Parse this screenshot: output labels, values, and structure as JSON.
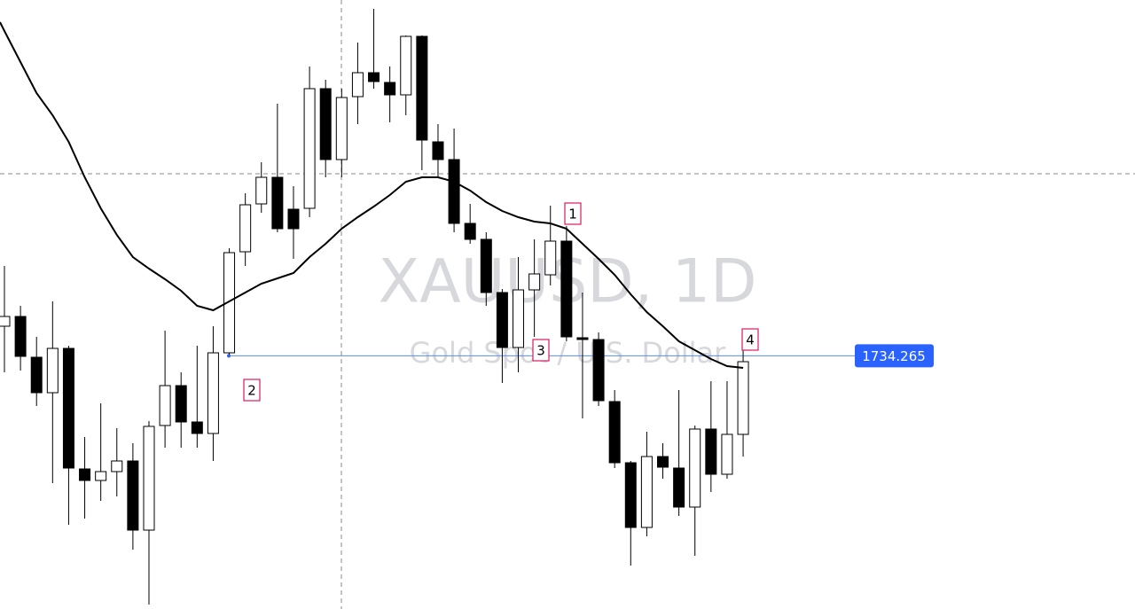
{
  "chart_data": {
    "type": "candlestick",
    "title": "XAUUSD, 1D",
    "subtitle": "Gold Spot / U.S. Dollar",
    "ylim": [
      1620,
      1894.8
    ],
    "categories": [
      null,
      null,
      null,
      null,
      null,
      null,
      null,
      null,
      null,
      null,
      null,
      null,
      null,
      null,
      null,
      null,
      null,
      null,
      null,
      null,
      null,
      null,
      null,
      null,
      null,
      null,
      null,
      null,
      null,
      null,
      null,
      null,
      null,
      null,
      null,
      null,
      null,
      null,
      null,
      null,
      null,
      null,
      null,
      null,
      null,
      null,
      null
    ],
    "open": [
      1747.6,
      1752.0,
      1733.6,
      1717.6,
      1737.6,
      1683.2,
      1678.0,
      1682.0,
      1686.8,
      1655.6,
      1702.8,
      1720.8,
      1704.4,
      1699.2,
      1735.6,
      1781.2,
      1802.8,
      1814.8,
      1800.4,
      1800.8,
      1854.8,
      1822.8,
      1851.2,
      1862.0,
      1857.6,
      1852.0,
      1878.4,
      1830.8,
      1822.8,
      1794.0,
      1786.8,
      1762.8,
      1738.0,
      1764.0,
      1770.8,
      1786.0,
      1742.4,
      1741.6,
      1713.6,
      1686.0,
      1656.8,
      1688.8,
      1683.6,
      1666.0,
      1701.2,
      1680.8,
      1698.8
    ],
    "high": [
      1774.8,
      1756.8,
      1742.8,
      1758.8,
      1738.8,
      1697.6,
      1712.8,
      1701.6,
      1694.8,
      1704.8,
      1745.6,
      1726.8,
      1738.8,
      1747.6,
      1782.8,
      1807.6,
      1821.6,
      1848.0,
      1810.8,
      1864.8,
      1858.8,
      1854.8,
      1875.6,
      1890.8,
      1864.8,
      1878.8,
      1878.8,
      1838.8,
      1836.8,
      1802.8,
      1790.0,
      1764.4,
      1778.8,
      1786.8,
      1802.0,
      1792.8,
      1762.8,
      1744.8,
      1718.8,
      1686.8,
      1700.0,
      1694.8,
      1718.8,
      1702.8,
      1722.8,
      1722.8,
      1736.8
    ],
    "low": [
      1726.8,
      1727.6,
      1711.6,
      1676.8,
      1658.0,
      1660.8,
      1668.8,
      1670.8,
      1646.8,
      1622.0,
      1692.8,
      1692.8,
      1692.8,
      1686.8,
      1734.8,
      1774.8,
      1798.8,
      1790.0,
      1778.0,
      1796.8,
      1814.8,
      1814.8,
      1838.8,
      1854.8,
      1839.6,
      1842.8,
      1818.0,
      1814.8,
      1790.0,
      1784.8,
      1756.8,
      1722.0,
      1726.8,
      1742.8,
      1766.0,
      1740.8,
      1706.0,
      1711.6,
      1683.6,
      1639.6,
      1652.8,
      1678.8,
      1662.0,
      1644.0,
      1672.8,
      1678.8,
      1688.8
    ],
    "close": [
      1752.0,
      1734.0,
      1717.6,
      1737.6,
      1683.6,
      1678.0,
      1682.0,
      1686.8,
      1655.6,
      1702.4,
      1720.8,
      1704.4,
      1699.2,
      1735.6,
      1780.8,
      1802.4,
      1814.8,
      1791.6,
      1791.6,
      1854.8,
      1822.8,
      1850.8,
      1862.0,
      1858.0,
      1852.0,
      1878.4,
      1831.6,
      1822.8,
      1794.0,
      1786.8,
      1762.8,
      1738.0,
      1764.0,
      1771.2,
      1786.0,
      1742.8,
      1741.6,
      1714.0,
      1686.0,
      1656.8,
      1688.8,
      1684.0,
      1666.0,
      1701.2,
      1680.8,
      1698.8,
      1731.6
    ],
    "moving_average": [
      1880.8,
      1866.8,
      1852.8,
      1842.8,
      1830.8,
      1814.8,
      1800.8,
      1788.8,
      1778.8,
      1773.6,
      1768.8,
      1763.6,
      1756.8,
      1754.8,
      1758.8,
      1762.8,
      1766.8,
      1769.2,
      1771.6,
      1778.8,
      1784.8,
      1791.6,
      1796.8,
      1801.6,
      1806.8,
      1812.8,
      1814.8,
      1814.8,
      1812.8,
      1808.8,
      1803.6,
      1799.6,
      1796.8,
      1794.8,
      1794.0,
      1791.6,
      1784.8,
      1778.0,
      1770.8,
      1762.0,
      1754.0,
      1747.6,
      1740.8,
      1736.8,
      1732.8,
      1729.6,
      1728.8
    ],
    "price_line": 1734.265,
    "annotations": [
      "1",
      "2",
      "3",
      "4"
    ]
  }
}
